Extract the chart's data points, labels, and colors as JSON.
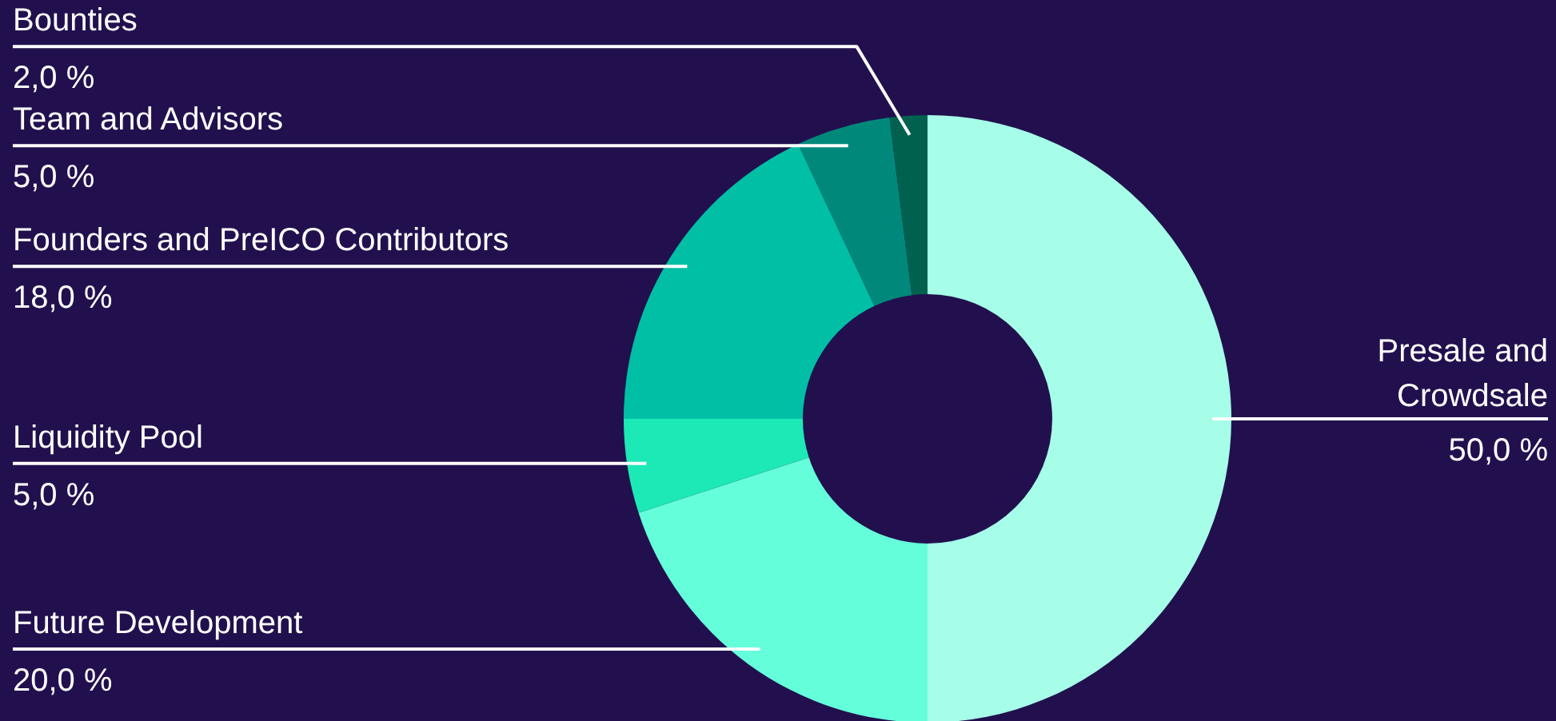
{
  "chart_data": {
    "type": "donut",
    "categories": [
      "Presale and Crowdsale",
      "Future Development",
      "Liquidity Pool",
      "Founders and PreICO Contributors",
      "Team and Advisors",
      "Bounties"
    ],
    "values": [
      50,
      20,
      5,
      18,
      5,
      2
    ],
    "value_labels": [
      "50,0 %",
      "20,0 %",
      "5,0 %",
      "18,0 %",
      "5,0 %",
      "2,0 %"
    ],
    "colors": [
      "#a6fde8",
      "#64fedb",
      "#1de9b6",
      "#00bfa5",
      "#00897b",
      "#00614f"
    ]
  }
}
